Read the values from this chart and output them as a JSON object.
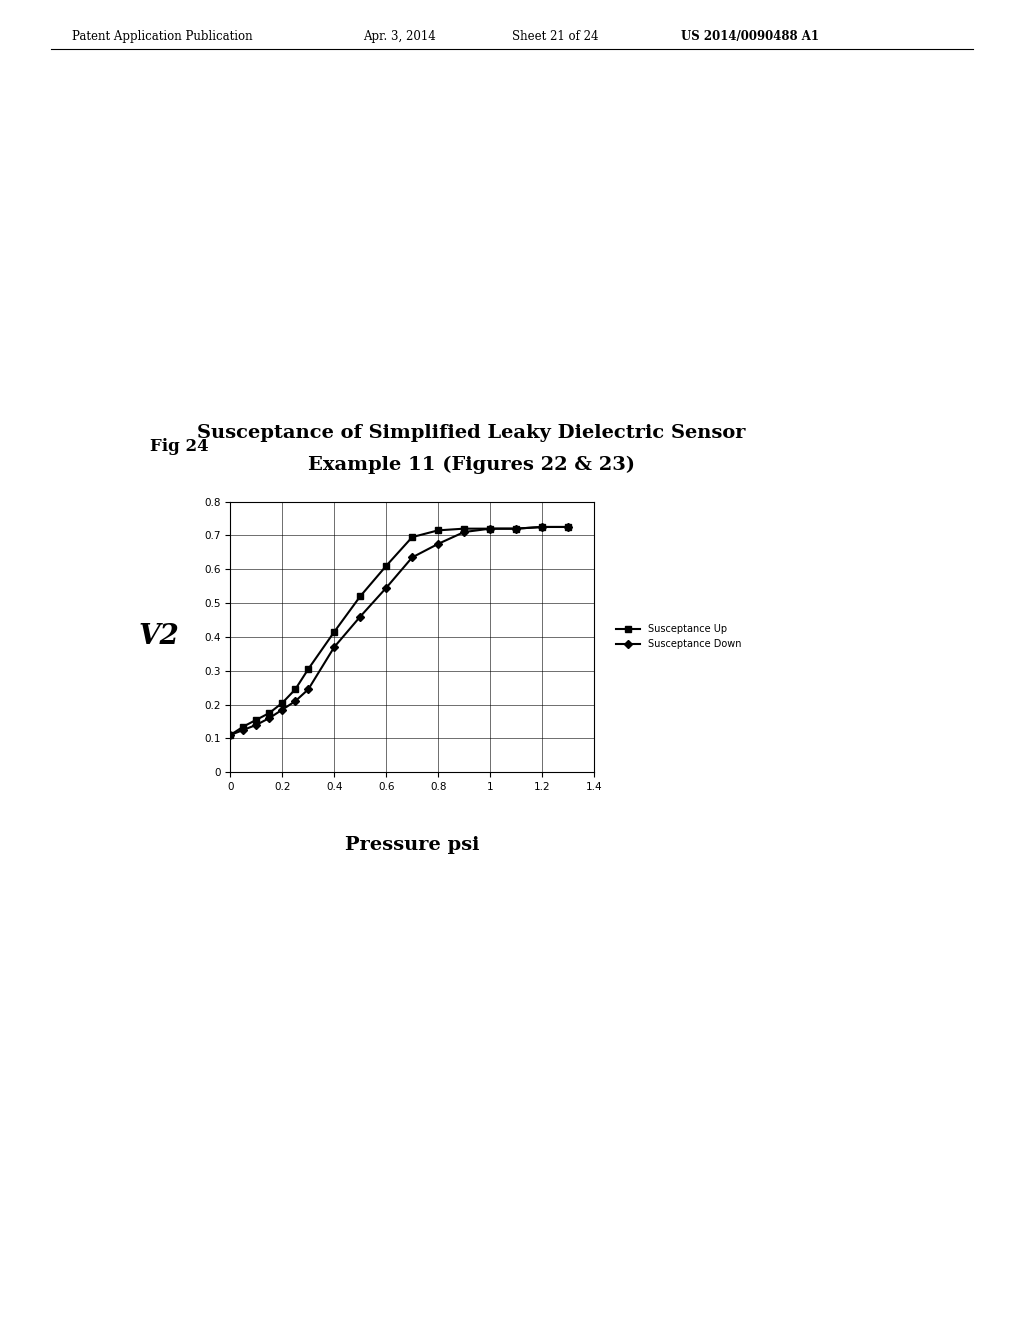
{
  "title_line1": "Susceptance of Simplified Leaky Dielectric Sensor",
  "title_line2": "Example 11 (Figures 22 & 23)",
  "fig_label": "Fig 24",
  "xlabel": "Pressure psi",
  "ylabel": "V2",
  "xlim": [
    0,
    1.4
  ],
  "ylim": [
    0,
    0.8
  ],
  "xticks": [
    0,
    0.2,
    0.4,
    0.6,
    0.8,
    1.0,
    1.2,
    1.4
  ],
  "yticks": [
    0,
    0.1,
    0.2,
    0.3,
    0.4,
    0.5,
    0.6,
    0.7,
    0.8
  ],
  "susceptance_up_x": [
    0,
    0.05,
    0.1,
    0.15,
    0.2,
    0.25,
    0.3,
    0.4,
    0.5,
    0.6,
    0.7,
    0.8,
    0.9,
    1.0,
    1.1,
    1.2,
    1.3
  ],
  "susceptance_up_y": [
    0.11,
    0.135,
    0.155,
    0.175,
    0.205,
    0.245,
    0.305,
    0.415,
    0.52,
    0.61,
    0.695,
    0.715,
    0.72,
    0.72,
    0.72,
    0.725,
    0.725
  ],
  "susceptance_down_x": [
    0,
    0.05,
    0.1,
    0.15,
    0.2,
    0.25,
    0.3,
    0.4,
    0.5,
    0.6,
    0.7,
    0.8,
    0.9,
    1.0,
    1.1,
    1.2,
    1.3
  ],
  "susceptance_down_y": [
    0.11,
    0.125,
    0.14,
    0.16,
    0.185,
    0.21,
    0.245,
    0.37,
    0.46,
    0.545,
    0.635,
    0.675,
    0.71,
    0.72,
    0.72,
    0.725,
    0.725
  ],
  "line_color": "#000000",
  "marker_up": "s",
  "marker_down": "D",
  "legend_up": "Susceptance Up",
  "legend_down": "Susceptance Down",
  "header_text": "Patent Application Publication",
  "header_date": "Apr. 3, 2014",
  "header_sheet": "Sheet 21 of 24",
  "header_patent": "US 2014/0090488 A1",
  "background_color": "#ffffff",
  "figure_width": 10.24,
  "figure_height": 13.2,
  "dpi": 100
}
